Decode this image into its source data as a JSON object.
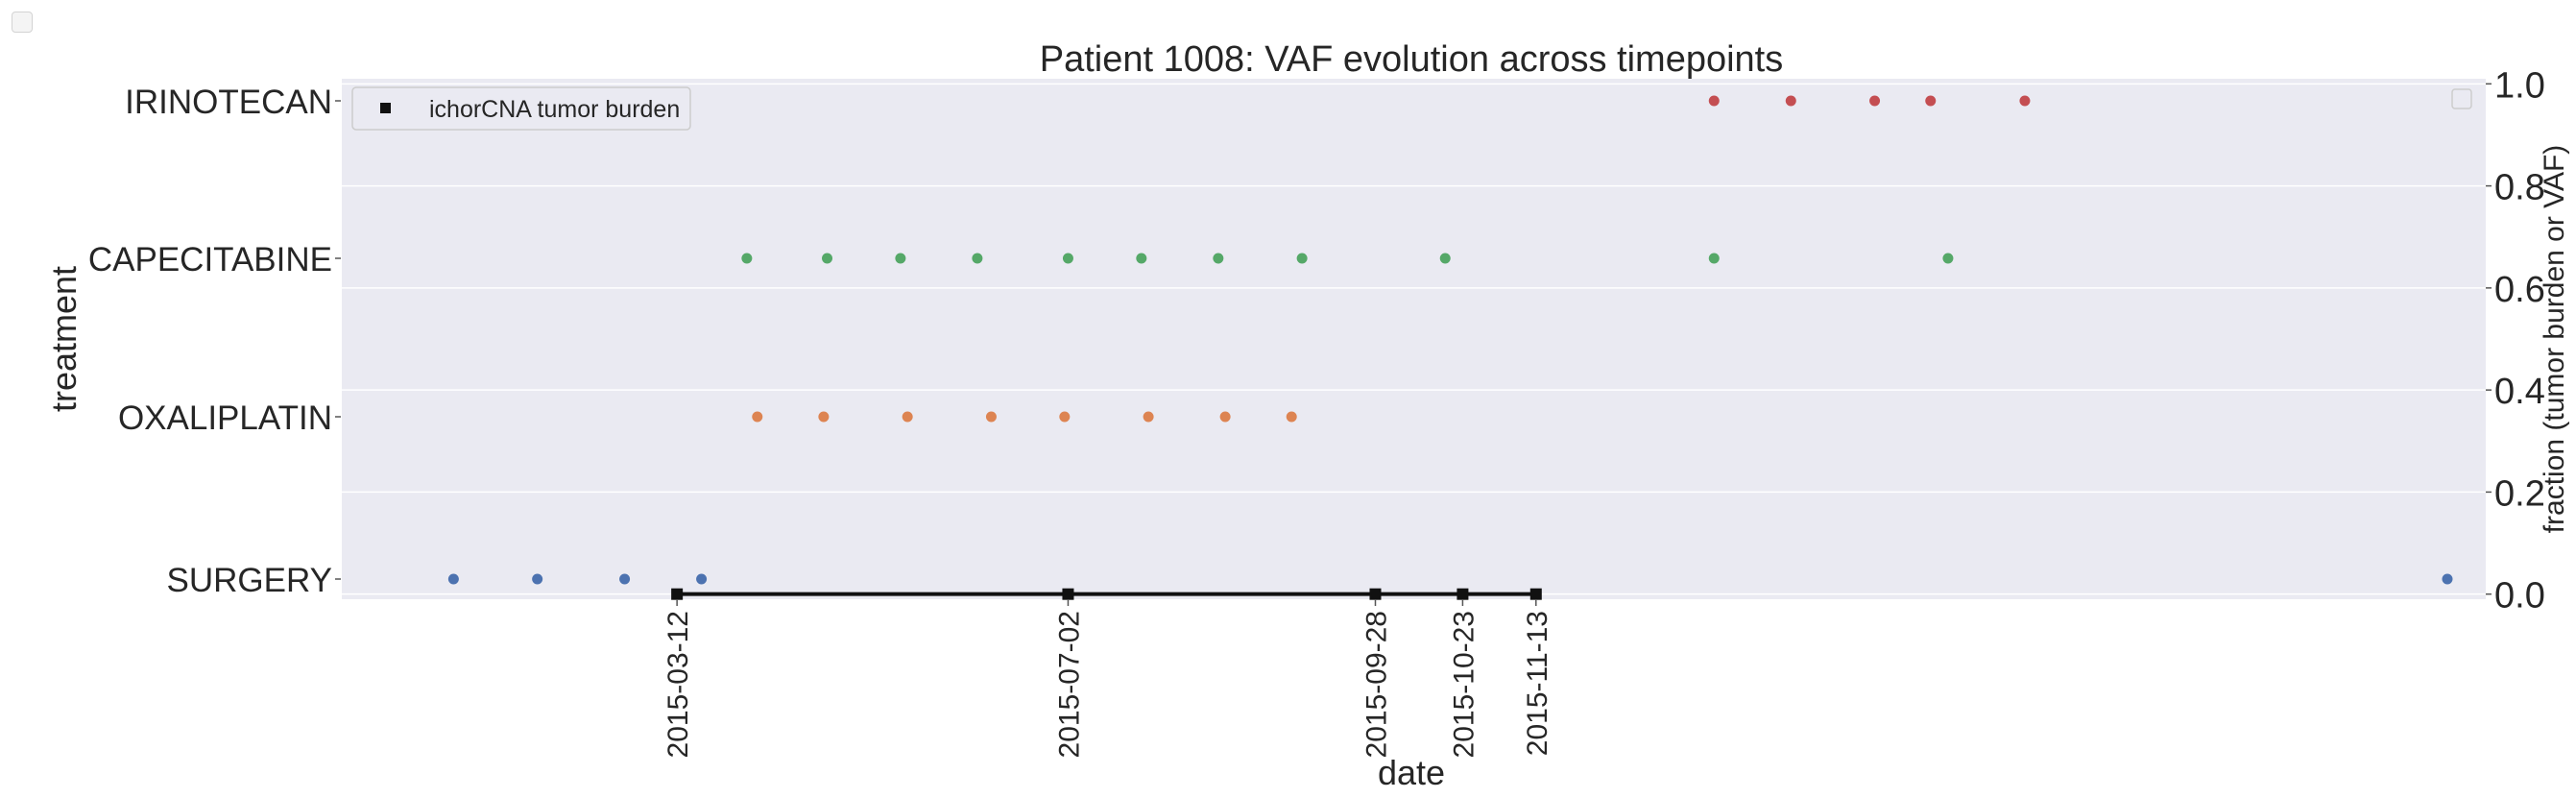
{
  "chart_data": {
    "type": "scatter",
    "title": "Patient 1008: VAF evolution across timepoints",
    "xlabel": "date",
    "ylabel_left": "treatment",
    "ylabel_right": "fraction (tumor burden or VAF)",
    "x_tick_labels": [
      "2015-03-12",
      "2015-07-02",
      "2015-09-28",
      "2015-10-23",
      "2015-11-13"
    ],
    "x_range": [
      "2014-12-06",
      "2016-08-11"
    ],
    "y_categories": [
      "SURGERY",
      "OXALIPLATIN",
      "CAPECITABINE",
      "IRINOTECAN"
    ],
    "y_right_ticks": [
      "0.0",
      "0.2",
      "0.4",
      "0.6",
      "0.8",
      "1.0"
    ],
    "y_right_range": [
      -0.01,
      1.01
    ],
    "grid": true,
    "legend_position": "top-left",
    "legend_entries": [
      "ichorCNA tumor burden"
    ],
    "treatment_series": [
      {
        "category": "SURGERY",
        "color": "#4c72b0",
        "dates": [
          "2015-01-07",
          "2015-01-31",
          "2015-02-25",
          "2015-03-19",
          "2016-07-31"
        ]
      },
      {
        "category": "OXALIPLATIN",
        "color": "#dd8452",
        "dates": [
          "2015-04-04",
          "2015-04-23",
          "2015-05-17",
          "2015-06-10",
          "2015-07-01",
          "2015-07-25",
          "2015-08-16",
          "2015-09-04"
        ]
      },
      {
        "category": "CAPECITABINE",
        "color": "#55a868",
        "dates": [
          "2015-04-01",
          "2015-04-24",
          "2015-05-15",
          "2015-06-06",
          "2015-07-02",
          "2015-07-23",
          "2015-08-14",
          "2015-09-07",
          "2015-10-18",
          "2016-01-03",
          "2016-03-10"
        ]
      },
      {
        "category": "IRINOTECAN",
        "color": "#c44e52",
        "dates": [
          "2016-01-03",
          "2016-01-25",
          "2016-02-18",
          "2016-03-05",
          "2016-04-01"
        ]
      }
    ],
    "tumor_burden_series": {
      "name": "ichorCNA tumor burden",
      "color": "#111111",
      "x": [
        "2015-03-12",
        "2015-07-02",
        "2015-09-28",
        "2015-10-23",
        "2015-11-13"
      ],
      "y": [
        0.0,
        0.0,
        0.0,
        0.0,
        0.0
      ]
    }
  }
}
